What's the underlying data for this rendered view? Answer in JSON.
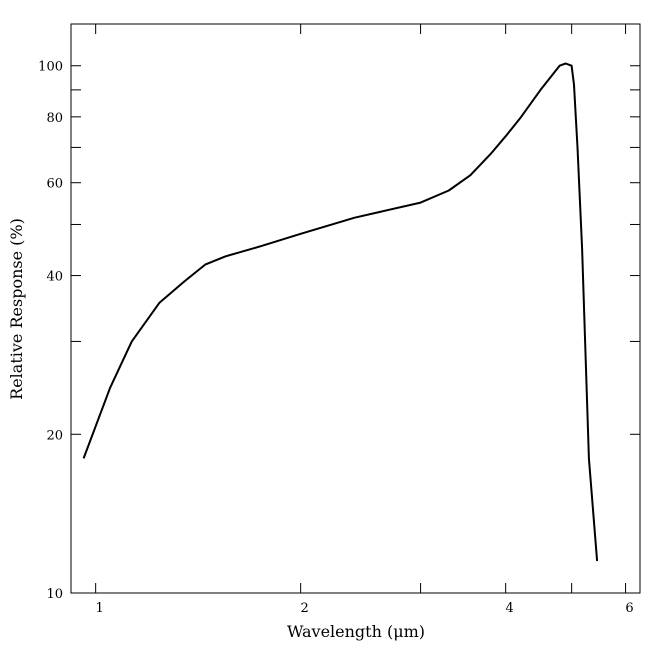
{
  "chart_data": {
    "type": "line",
    "title": "",
    "xlabel": "Wavelength (μm)",
    "ylabel": "Relative Response (%)",
    "xscale": "log",
    "yscale": "log",
    "xlim": [
      0.92,
      6.3
    ],
    "ylim": [
      10,
      120
    ],
    "grid": false,
    "legend": "none",
    "x_ticks": [
      1,
      2,
      3,
      4,
      5,
      6
    ],
    "x_tick_labels": [
      "1",
      "2",
      "",
      "4",
      "",
      "6"
    ],
    "y_ticks": [
      10,
      20,
      30,
      40,
      50,
      60,
      70,
      80,
      90,
      100
    ],
    "y_tick_labels": [
      "10",
      "20",
      "",
      "40",
      "",
      "60",
      "",
      "80",
      "",
      "100"
    ],
    "series": [
      {
        "color": "#000000",
        "x": [
          0.96,
          1.05,
          1.13,
          1.24,
          1.35,
          1.45,
          1.55,
          1.75,
          2.0,
          2.4,
          3.0,
          3.3,
          3.55,
          3.8,
          4.0,
          4.2,
          4.5,
          4.8,
          4.9,
          5.0,
          5.04,
          5.1,
          5.18,
          5.3,
          5.45
        ],
        "y": [
          18.0,
          24.5,
          30.0,
          35.5,
          39.0,
          42.0,
          43.5,
          45.5,
          48.0,
          51.5,
          55.0,
          58.0,
          62.0,
          68.0,
          73.5,
          79.5,
          90.0,
          100.0,
          101.0,
          100.0,
          92.0,
          70.0,
          45.0,
          18.0,
          11.5
        ]
      }
    ]
  }
}
